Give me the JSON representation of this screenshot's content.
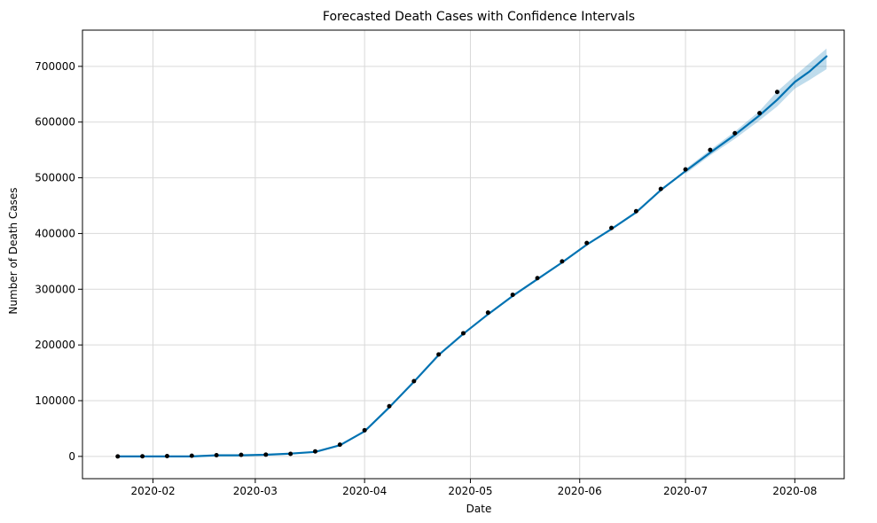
{
  "chart_data": {
    "type": "line",
    "title": "Forecasted Death Cases with Confidence Intervals",
    "xlabel": "Date",
    "ylabel": "Number of Death Cases",
    "x_range": [
      "2020-01-12",
      "2020-08-15"
    ],
    "ylim": [
      -40000,
      765000
    ],
    "grid": true,
    "x_ticks": [
      "2020-02-01",
      "2020-03-01",
      "2020-04-01",
      "2020-05-01",
      "2020-06-01",
      "2020-07-01",
      "2020-08-01"
    ],
    "x_tick_labels": [
      "2020-02",
      "2020-03",
      "2020-04",
      "2020-05",
      "2020-06",
      "2020-07",
      "2020-08"
    ],
    "y_ticks": [
      0,
      100000,
      200000,
      300000,
      400000,
      500000,
      600000,
      700000
    ],
    "y_tick_labels": [
      "0",
      "100000",
      "200000",
      "300000",
      "400000",
      "500000",
      "600000",
      "700000"
    ],
    "colors": {
      "observed": "#000000",
      "forecast": "#0072B2",
      "interval": "#0072B2"
    },
    "series": [
      {
        "type": "scatter",
        "x": [
          "2020-01-22",
          "2020-01-29",
          "2020-02-05",
          "2020-02-12",
          "2020-02-19",
          "2020-02-26",
          "2020-03-04",
          "2020-03-11",
          "2020-03-18",
          "2020-03-25",
          "2020-04-01",
          "2020-04-08",
          "2020-04-15",
          "2020-04-22",
          "2020-04-29",
          "2020-05-06",
          "2020-05-13",
          "2020-05-20",
          "2020-05-27",
          "2020-06-03",
          "2020-06-10",
          "2020-06-17",
          "2020-06-24",
          "2020-07-01",
          "2020-07-08",
          "2020-07-15",
          "2020-07-22",
          "2020-07-27"
        ],
        "y": [
          17,
          133,
          563,
          1116,
          2130,
          2770,
          3200,
          4600,
          9000,
          21000,
          47000,
          90000,
          135000,
          183000,
          221000,
          258000,
          290000,
          320000,
          350000,
          383000,
          410000,
          440000,
          480000,
          515000,
          550000,
          580000,
          616000,
          654000
        ]
      },
      {
        "type": "line",
        "x": [
          "2020-01-22",
          "2020-01-29",
          "2020-02-05",
          "2020-02-12",
          "2020-02-19",
          "2020-02-26",
          "2020-03-04",
          "2020-03-11",
          "2020-03-18",
          "2020-03-25",
          "2020-04-01",
          "2020-04-08",
          "2020-04-15",
          "2020-04-22",
          "2020-04-29",
          "2020-05-06",
          "2020-05-13",
          "2020-05-20",
          "2020-05-27",
          "2020-06-03",
          "2020-06-10",
          "2020-06-17",
          "2020-06-24",
          "2020-07-01",
          "2020-07-08",
          "2020-07-15",
          "2020-07-22",
          "2020-07-27",
          "2020-08-01",
          "2020-08-05",
          "2020-08-10"
        ],
        "y": [
          0,
          0,
          0,
          0,
          2000,
          2000,
          3000,
          5000,
          8000,
          20000,
          45000,
          88000,
          134000,
          182000,
          220000,
          255000,
          288000,
          318000,
          348000,
          380000,
          408000,
          438000,
          478000,
          512000,
          545000,
          577000,
          612000,
          640000,
          672000,
          690000,
          718000
        ]
      }
    ],
    "interval": {
      "x": [
        "2020-07-01",
        "2020-07-08",
        "2020-07-15",
        "2020-07-22",
        "2020-07-27",
        "2020-08-01",
        "2020-08-05",
        "2020-08-10"
      ],
      "lower": [
        507000,
        540000,
        570000,
        603000,
        628000,
        660000,
        675000,
        695000
      ],
      "upper": [
        516000,
        550000,
        583000,
        620000,
        655000,
        683000,
        705000,
        732000
      ]
    }
  }
}
